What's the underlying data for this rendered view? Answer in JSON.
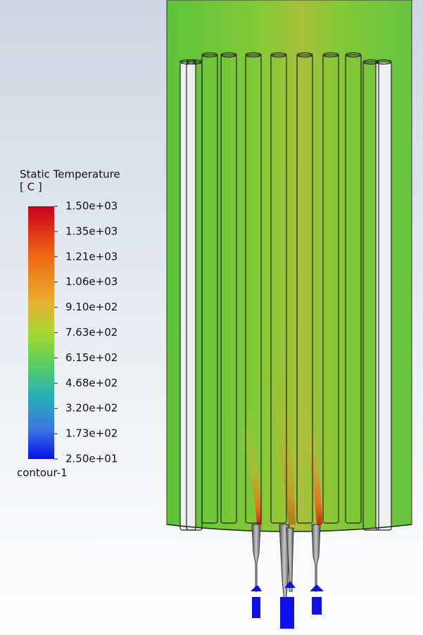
{
  "legend": {
    "title": "Static Temperature",
    "unit": "[ C ]",
    "ticks": [
      "1.50e+03",
      "1.35e+03",
      "1.21e+03",
      "1.06e+03",
      "9.10e+02",
      "7.63e+02",
      "6.15e+02",
      "4.68e+02",
      "3.20e+02",
      "1.73e+02",
      "2.50e+01"
    ],
    "name": "contour-1"
  }
}
